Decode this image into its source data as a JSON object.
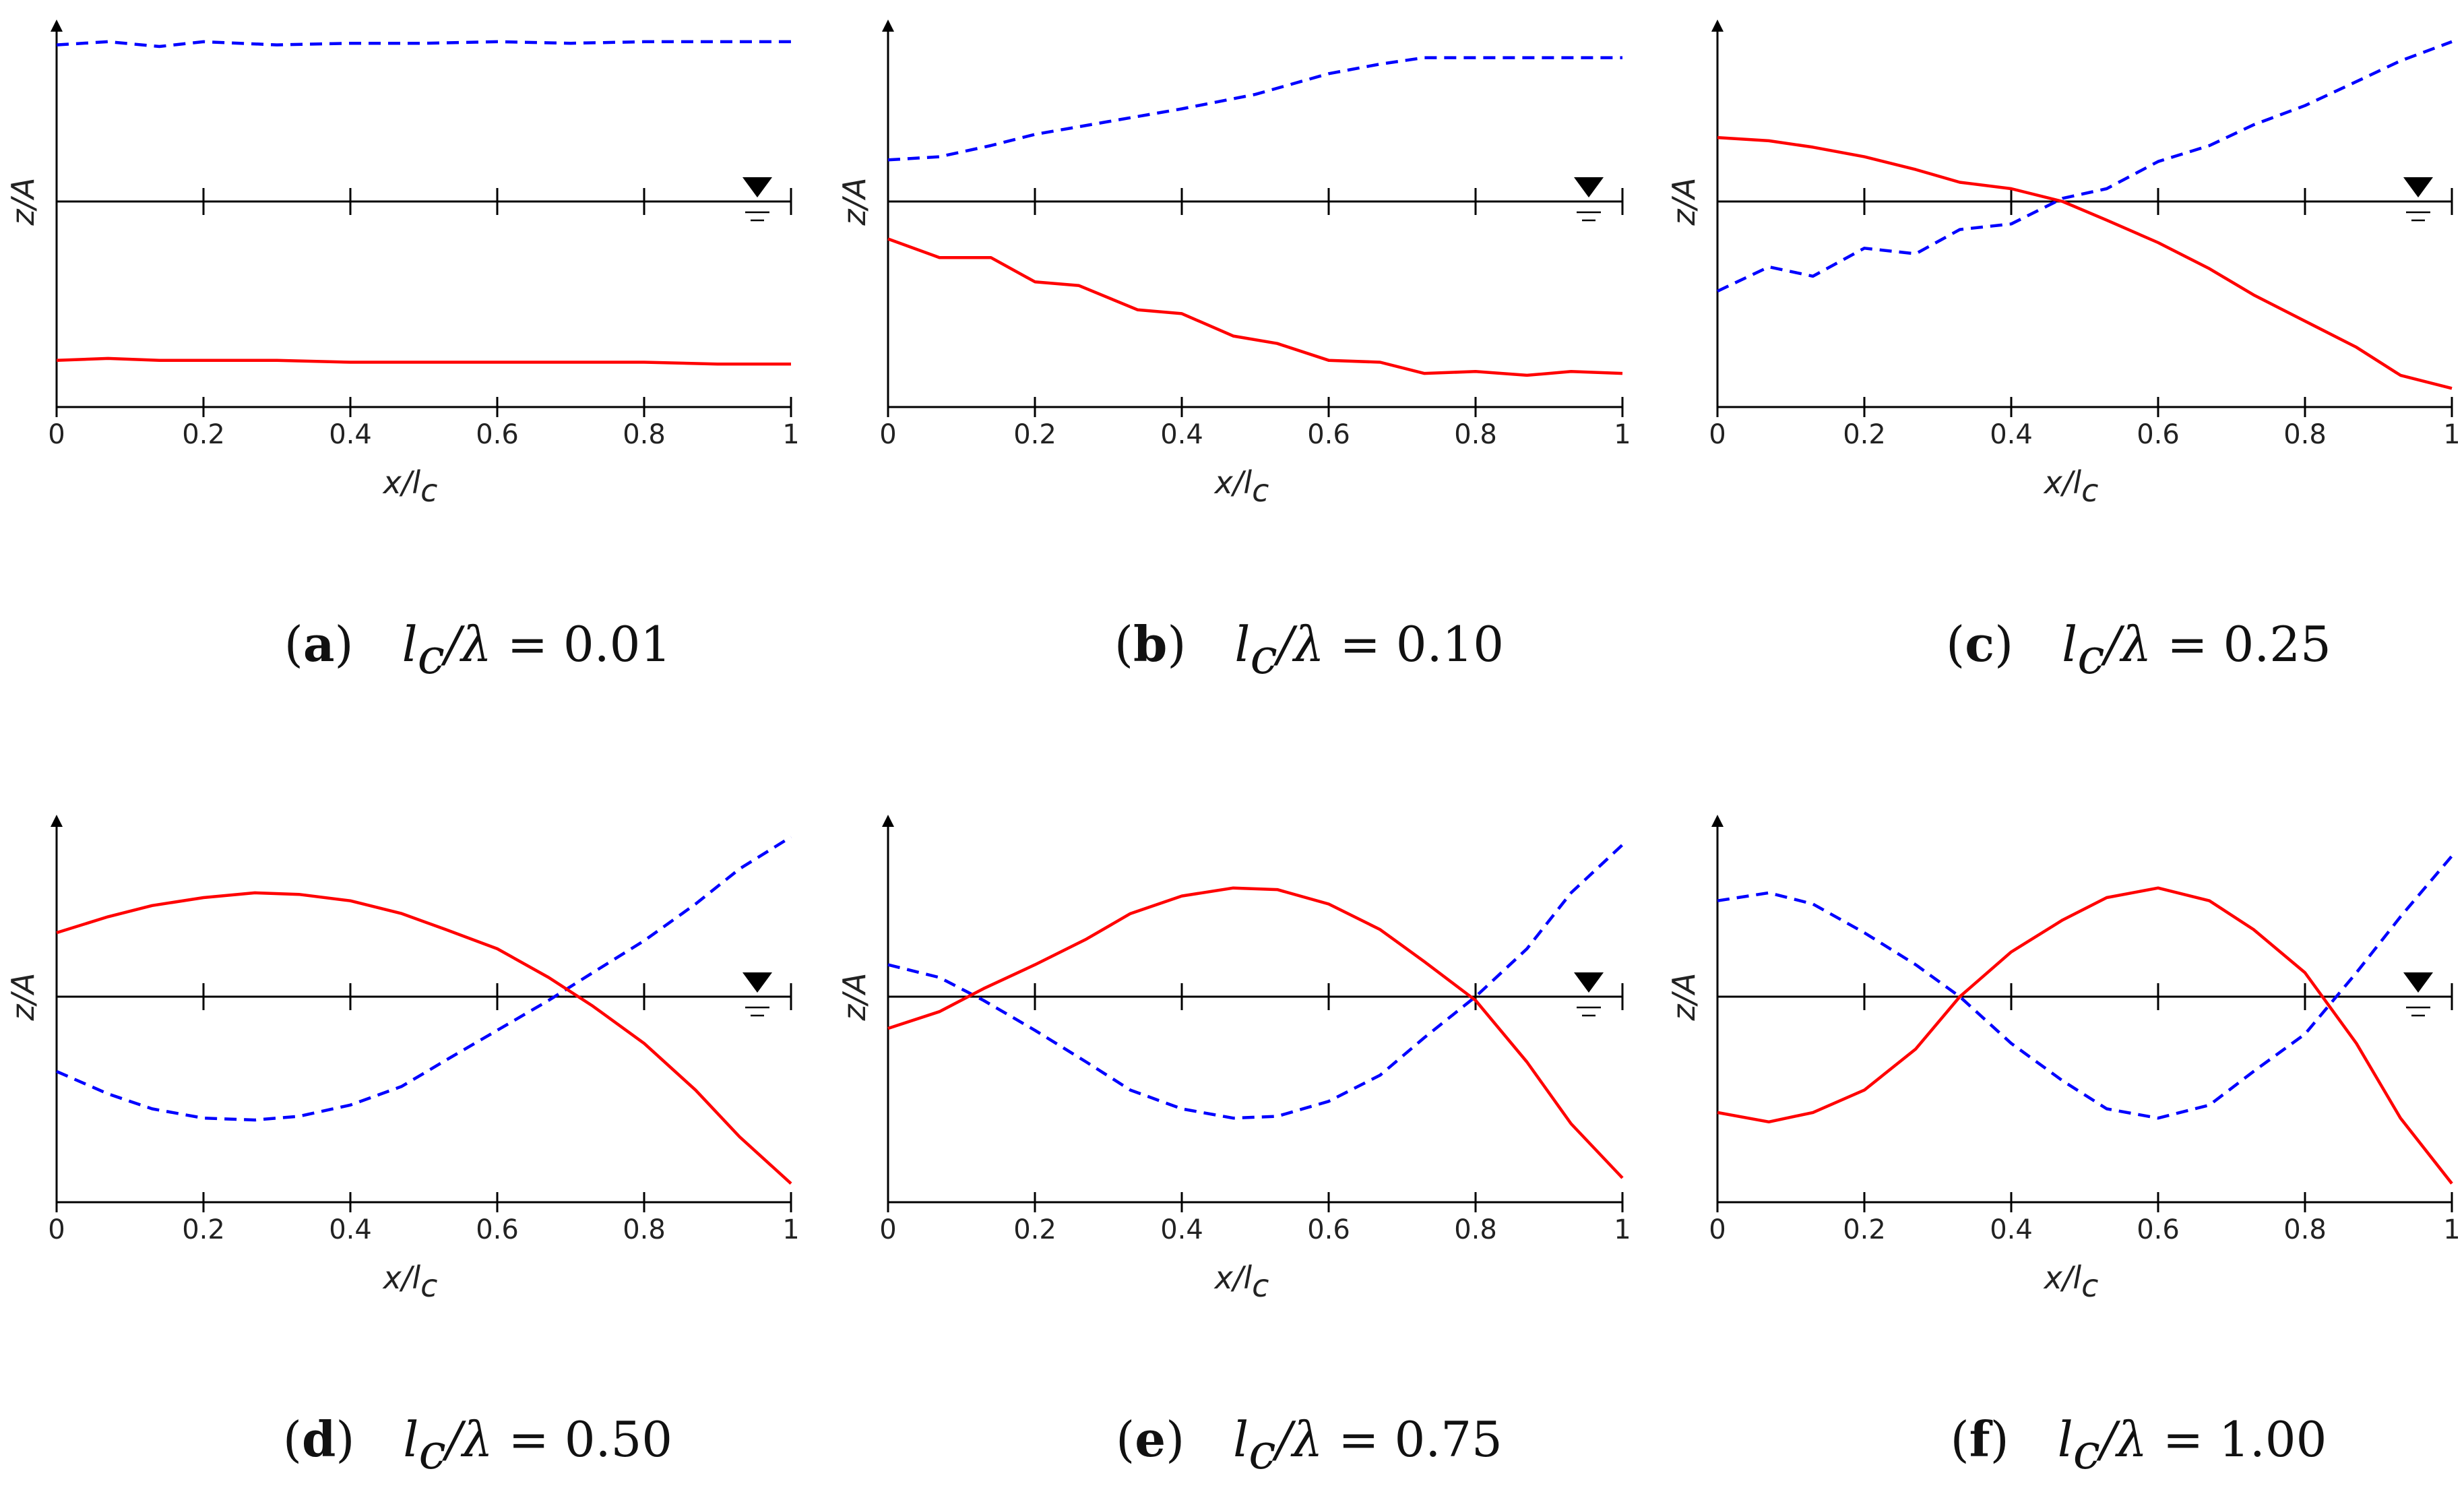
{
  "chart_data": [
    {
      "id": "a",
      "type": "line",
      "caption": {
        "letter": "a",
        "lhs": "l",
        "sub": "c",
        "ratio": "/λ",
        "eq": " = 0.01"
      },
      "xlabel": {
        "main": "x/l",
        "sub": "c"
      },
      "ylabel": "z/A",
      "xlim": [
        0,
        1
      ],
      "ylim": [
        -1.1,
        1.05
      ],
      "xticks": [
        "0",
        "0.2",
        "0.4",
        "0.6",
        "0.8",
        "1"
      ],
      "water_level_marker": true,
      "grid": false,
      "series": [
        {
          "style": "dashed",
          "color": "#0000ff",
          "x": [
            0,
            0.07,
            0.14,
            0.2,
            0.3,
            0.4,
            0.5,
            0.6,
            0.7,
            0.8,
            0.9,
            1.0
          ],
          "y": [
            0.98,
            1.0,
            0.97,
            1.0,
            0.98,
            0.99,
            0.99,
            1.0,
            0.99,
            1.0,
            1.0,
            1.0
          ]
        },
        {
          "style": "solid",
          "color": "#ff0000",
          "x": [
            0,
            0.07,
            0.14,
            0.2,
            0.3,
            0.4,
            0.5,
            0.6,
            0.7,
            0.8,
            0.9,
            1.0
          ],
          "y": [
            -0.85,
            -0.84,
            -0.85,
            -0.85,
            -0.85,
            -0.86,
            -0.86,
            -0.86,
            -0.86,
            -0.86,
            -0.87,
            -0.87
          ]
        }
      ]
    },
    {
      "id": "b",
      "type": "line",
      "caption": {
        "letter": "b",
        "lhs": "l",
        "sub": "c",
        "ratio": "/λ",
        "eq": " = 0.10"
      },
      "xlabel": {
        "main": "x/l",
        "sub": "c"
      },
      "ylabel": "z/A",
      "xlim": [
        0,
        1
      ],
      "ylim": [
        -1.1,
        1.05
      ],
      "xticks": [
        "0",
        "0.2",
        "0.4",
        "0.6",
        "0.8",
        "1"
      ],
      "water_level_marker": true,
      "grid": false,
      "series": [
        {
          "style": "dashed",
          "color": "#0000ff",
          "x": [
            0,
            0.07,
            0.14,
            0.2,
            0.3,
            0.4,
            0.5,
            0.6,
            0.67,
            0.73,
            0.8,
            0.9,
            1.0
          ],
          "y": [
            0.26,
            0.28,
            0.35,
            0.42,
            0.5,
            0.58,
            0.67,
            0.8,
            0.86,
            0.9,
            0.9,
            0.9,
            0.9
          ]
        },
        {
          "style": "solid",
          "color": "#ff0000",
          "x": [
            0,
            0.07,
            0.1,
            0.14,
            0.2,
            0.26,
            0.34,
            0.4,
            0.47,
            0.53,
            0.6,
            0.67,
            0.73,
            0.8,
            0.87,
            0.93,
            1.0
          ],
          "y": [
            -0.2,
            -0.3,
            -0.3,
            -0.3,
            -0.43,
            -0.45,
            -0.58,
            -0.6,
            -0.72,
            -0.76,
            -0.85,
            -0.86,
            -0.92,
            -0.91,
            -0.93,
            -0.91,
            -0.92
          ]
        }
      ]
    },
    {
      "id": "c",
      "type": "line",
      "caption": {
        "letter": "c",
        "lhs": "l",
        "sub": "c",
        "ratio": "/λ",
        "eq": " = 0.25"
      },
      "xlabel": {
        "main": "x/l",
        "sub": "c"
      },
      "ylabel": "z/A",
      "xlim": [
        0,
        1
      ],
      "ylim": [
        -1.1,
        1.05
      ],
      "xticks": [
        "0",
        "0.2",
        "0.4",
        "0.6",
        "0.8",
        "1"
      ],
      "water_level_marker": true,
      "grid": false,
      "series": [
        {
          "style": "dashed",
          "color": "#0000ff",
          "x": [
            0,
            0.07,
            0.13,
            0.2,
            0.27,
            0.33,
            0.4,
            0.47,
            0.53,
            0.6,
            0.67,
            0.73,
            0.8,
            0.87,
            0.93,
            1.0
          ],
          "y": [
            -0.48,
            -0.35,
            -0.4,
            -0.25,
            -0.28,
            -0.15,
            -0.12,
            0.02,
            0.08,
            0.25,
            0.35,
            0.48,
            0.6,
            0.75,
            0.88,
            1.0
          ]
        },
        {
          "style": "solid",
          "color": "#ff0000",
          "x": [
            0,
            0.07,
            0.13,
            0.2,
            0.27,
            0.33,
            0.4,
            0.47,
            0.53,
            0.6,
            0.67,
            0.73,
            0.8,
            0.87,
            0.93,
            1.0
          ],
          "y": [
            0.4,
            0.38,
            0.34,
            0.28,
            0.2,
            0.12,
            0.08,
            0.0,
            -0.1,
            -0.22,
            -0.36,
            -0.5,
            -0.64,
            -0.78,
            -0.93,
            -1.0
          ]
        }
      ]
    },
    {
      "id": "d",
      "type": "line",
      "caption": {
        "letter": "d",
        "lhs": "l",
        "sub": "c",
        "ratio": "/λ",
        "eq": " = 0.50"
      },
      "xlabel": {
        "main": "x/l",
        "sub": "c"
      },
      "ylabel": "z/A",
      "xlim": [
        0,
        1
      ],
      "ylim": [
        -1.1,
        1.05
      ],
      "xticks": [
        "0",
        "0.2",
        "0.4",
        "0.6",
        "0.8",
        "1"
      ],
      "water_level_marker": true,
      "grid": false,
      "series": [
        {
          "style": "dashed",
          "color": "#0000ff",
          "x": [
            0,
            0.07,
            0.13,
            0.2,
            0.27,
            0.33,
            0.4,
            0.47,
            0.53,
            0.6,
            0.67,
            0.73,
            0.8,
            0.87,
            0.93,
            1.0
          ],
          "y": [
            -0.4,
            -0.52,
            -0.6,
            -0.65,
            -0.66,
            -0.64,
            -0.58,
            -0.48,
            -0.34,
            -0.18,
            -0.02,
            0.15,
            0.35,
            0.58,
            0.8,
            1.0
          ]
        },
        {
          "style": "solid",
          "color": "#ff0000",
          "x": [
            0,
            0.07,
            0.13,
            0.2,
            0.27,
            0.33,
            0.4,
            0.47,
            0.53,
            0.6,
            0.67,
            0.73,
            0.8,
            0.87,
            0.93,
            1.0
          ],
          "y": [
            0.4,
            0.5,
            0.57,
            0.62,
            0.65,
            0.64,
            0.6,
            0.52,
            0.42,
            0.3,
            0.12,
            -0.05,
            -0.25,
            -0.5,
            -0.75,
            -1.0
          ]
        }
      ]
    },
    {
      "id": "e",
      "type": "line",
      "caption": {
        "letter": "e",
        "lhs": "l",
        "sub": "c",
        "ratio": "/λ",
        "eq": " = 0.75"
      },
      "xlabel": {
        "main": "x/l",
        "sub": "c"
      },
      "ylabel": "z/A",
      "xlim": [
        0,
        1
      ],
      "ylim": [
        -1.1,
        1.05
      ],
      "xticks": [
        "0",
        "0.2",
        "0.4",
        "0.6",
        "0.8",
        "1"
      ],
      "water_level_marker": true,
      "grid": false,
      "series": [
        {
          "style": "dashed",
          "color": "#0000ff",
          "x": [
            0,
            0.07,
            0.13,
            0.2,
            0.27,
            0.33,
            0.4,
            0.47,
            0.53,
            0.6,
            0.67,
            0.73,
            0.8,
            0.87,
            0.93,
            1.0
          ],
          "y": [
            0.2,
            0.12,
            -0.02,
            -0.18,
            -0.35,
            -0.5,
            -0.6,
            -0.65,
            -0.64,
            -0.56,
            -0.42,
            -0.22,
            0.0,
            0.3,
            0.65,
            0.95
          ]
        },
        {
          "style": "solid",
          "color": "#ff0000",
          "x": [
            0,
            0.07,
            0.13,
            0.2,
            0.27,
            0.33,
            0.4,
            0.47,
            0.53,
            0.6,
            0.67,
            0.73,
            0.8,
            0.87,
            0.93,
            1.0
          ],
          "y": [
            -0.17,
            -0.08,
            0.05,
            0.2,
            0.36,
            0.52,
            0.63,
            0.68,
            0.67,
            0.58,
            0.42,
            0.22,
            -0.02,
            -0.35,
            -0.68,
            -0.97
          ]
        }
      ]
    },
    {
      "id": "f",
      "type": "line",
      "caption": {
        "letter": "f",
        "lhs": "l",
        "sub": "c",
        "ratio": "/λ",
        "eq": " = 1.00"
      },
      "xlabel": {
        "main": "x/l",
        "sub": "c"
      },
      "ylabel": "z/A",
      "xlim": [
        0,
        1
      ],
      "ylim": [
        -1.1,
        1.05
      ],
      "xticks": [
        "0",
        "0.2",
        "0.4",
        "0.6",
        "0.8",
        "1"
      ],
      "water_level_marker": true,
      "grid": false,
      "series": [
        {
          "style": "dashed",
          "color": "#0000ff",
          "x": [
            0,
            0.07,
            0.13,
            0.2,
            0.27,
            0.33,
            0.4,
            0.47,
            0.53,
            0.6,
            0.67,
            0.73,
            0.8,
            0.87,
            0.93,
            1.0
          ],
          "y": [
            0.6,
            0.65,
            0.58,
            0.4,
            0.2,
            0.0,
            -0.25,
            -0.45,
            -0.6,
            -0.65,
            -0.58,
            -0.4,
            -0.2,
            0.15,
            0.5,
            0.88
          ]
        },
        {
          "style": "solid",
          "color": "#ff0000",
          "x": [
            0,
            0.07,
            0.13,
            0.2,
            0.27,
            0.33,
            0.4,
            0.47,
            0.53,
            0.6,
            0.67,
            0.73,
            0.8,
            0.87,
            0.93,
            1.0
          ],
          "y": [
            -0.62,
            -0.67,
            -0.62,
            -0.5,
            -0.28,
            0.0,
            0.28,
            0.48,
            0.62,
            0.68,
            0.6,
            0.42,
            0.15,
            -0.25,
            -0.65,
            -1.0
          ]
        }
      ]
    }
  ]
}
